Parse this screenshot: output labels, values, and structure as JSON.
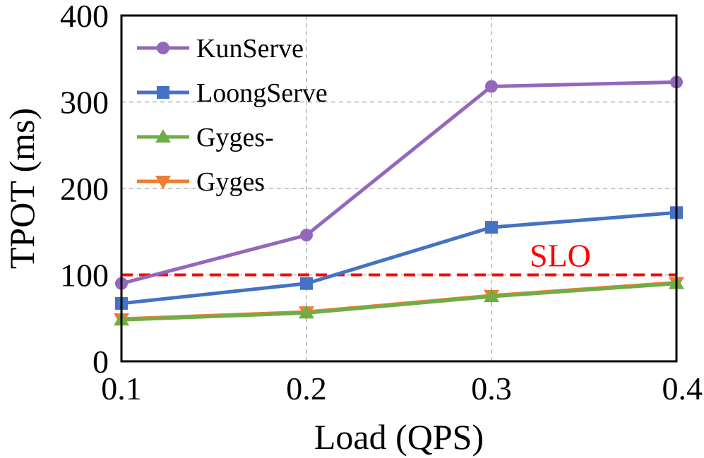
{
  "chart_data": {
    "type": "line",
    "title": "",
    "xlabel": "Load (QPS)",
    "ylabel": "TPOT (ms)",
    "x": [
      0.1,
      0.2,
      0.3,
      0.4
    ],
    "x_tick_labels": [
      "0.1",
      "0.2",
      "0.3",
      "0.4"
    ],
    "xlim": [
      0.1,
      0.4
    ],
    "ylim": [
      0,
      400
    ],
    "y_ticks": [
      0,
      100,
      200,
      300,
      400
    ],
    "y_tick_labels": [
      "0",
      "100",
      "200",
      "300",
      "400"
    ],
    "grid": true,
    "legend_position": "top-left",
    "series": [
      {
        "name": "KunServe",
        "color": "#9467bd",
        "marker": "circle",
        "values": [
          90,
          146,
          318,
          323
        ]
      },
      {
        "name": "LoongServe",
        "color": "#4472c4",
        "marker": "square",
        "values": [
          67,
          90,
          155,
          172
        ]
      },
      {
        "name": "Gyges-",
        "color": "#70ad47",
        "marker": "triangle-up",
        "values": [
          48,
          56,
          75,
          90
        ]
      },
      {
        "name": "Gyges",
        "color": "#ed7d31",
        "marker": "triangle-down",
        "values": [
          49,
          57,
          76,
          91
        ]
      }
    ],
    "reference_line": {
      "label": "SLO",
      "value": 100,
      "color": "#ff0000",
      "style": "dashed"
    }
  }
}
